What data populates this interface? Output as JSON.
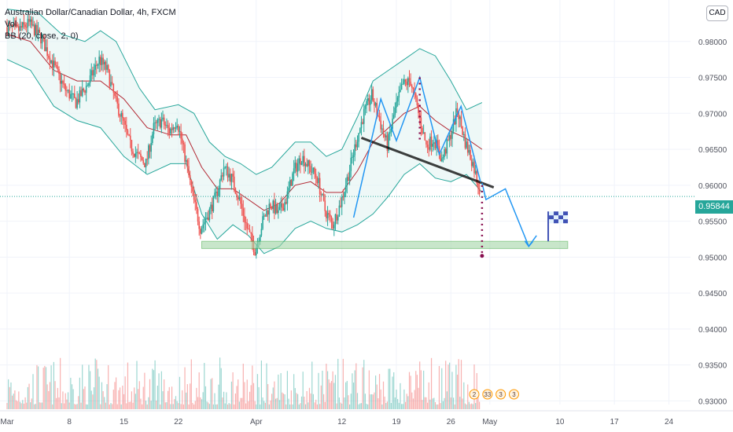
{
  "legend": {
    "symbol": "Australian Dollar/Canadian Dollar, 4h, FXCM",
    "vol": "Vol",
    "bb": "BB (20, close, 2, 0)"
  },
  "currency_badge": "CAD",
  "last_price_label": "0.95844",
  "colors": {
    "up": "#26a69a",
    "down": "#ef5350",
    "basis": "#b22833",
    "bands": "#26a69a",
    "band_fill": "#e0f2f1",
    "trend": "#000000",
    "projection": "#2196f3",
    "target_dots": "#880e4f",
    "support_zone": "#a5d6a7"
  },
  "chart_data": {
    "type": "candlestick",
    "title": "Australian Dollar/Canadian Dollar, 4h, FXCM",
    "y_ticks": [
      "0.98000",
      "0.97500",
      "0.97000",
      "0.96500",
      "0.96000",
      "0.95500",
      "0.95000",
      "0.94500",
      "0.94000",
      "0.93500",
      "0.93000"
    ],
    "ylim": [
      0.9295,
      0.9838
    ],
    "x_ticks": [
      {
        "label": "Mar",
        "day": 0
      },
      {
        "label": "8",
        "day": 8
      },
      {
        "label": "15",
        "day": 15
      },
      {
        "label": "22",
        "day": 22
      },
      {
        "label": "Apr",
        "day": 32
      },
      {
        "label": "12",
        "day": 43
      },
      {
        "label": "19",
        "day": 50
      },
      {
        "label": "26",
        "day": 57
      },
      {
        "label": "May",
        "day": 62
      },
      {
        "label": "10",
        "day": 71
      },
      {
        "label": "17",
        "day": 78
      },
      {
        "label": "24",
        "day": 85
      }
    ],
    "price_path": [
      {
        "day": 0.0,
        "price": 0.982
      },
      {
        "day": 1.5,
        "price": 0.9815
      },
      {
        "day": 3.0,
        "price": 0.9825
      },
      {
        "day": 4.5,
        "price": 0.9805
      },
      {
        "day": 6.0,
        "price": 0.977
      },
      {
        "day": 7.5,
        "price": 0.9735
      },
      {
        "day": 9.0,
        "price": 0.9715
      },
      {
        "day": 10.5,
        "price": 0.974
      },
      {
        "day": 12.0,
        "price": 0.9775
      },
      {
        "day": 13.0,
        "price": 0.976
      },
      {
        "day": 14.0,
        "price": 0.972
      },
      {
        "day": 15.0,
        "price": 0.969
      },
      {
        "day": 16.0,
        "price": 0.9655
      },
      {
        "day": 17.0,
        "price": 0.964
      },
      {
        "day": 18.0,
        "price": 0.963
      },
      {
        "day": 19.0,
        "price": 0.968
      },
      {
        "day": 20.0,
        "price": 0.969
      },
      {
        "day": 21.0,
        "price": 0.9675
      },
      {
        "day": 22.0,
        "price": 0.969
      },
      {
        "day": 23.0,
        "price": 0.964
      },
      {
        "day": 24.0,
        "price": 0.9585
      },
      {
        "day": 25.0,
        "price": 0.954
      },
      {
        "day": 26.0,
        "price": 0.956
      },
      {
        "day": 27.0,
        "price": 0.9585
      },
      {
        "day": 28.0,
        "price": 0.9625
      },
      {
        "day": 29.0,
        "price": 0.961
      },
      {
        "day": 30.0,
        "price": 0.958
      },
      {
        "day": 31.0,
        "price": 0.954
      },
      {
        "day": 32.0,
        "price": 0.951
      },
      {
        "day": 33.0,
        "price": 0.955
      },
      {
        "day": 34.0,
        "price": 0.9575
      },
      {
        "day": 35.0,
        "price": 0.956
      },
      {
        "day": 36.0,
        "price": 0.958
      },
      {
        "day": 37.0,
        "price": 0.962
      },
      {
        "day": 38.0,
        "price": 0.964
      },
      {
        "day": 39.0,
        "price": 0.9625
      },
      {
        "day": 40.0,
        "price": 0.961
      },
      {
        "day": 41.0,
        "price": 0.9565
      },
      {
        "day": 42.0,
        "price": 0.9545
      },
      {
        "day": 43.0,
        "price": 0.9575
      },
      {
        "day": 44.0,
        "price": 0.9615
      },
      {
        "day": 45.0,
        "price": 0.966
      },
      {
        "day": 46.0,
        "price": 0.97
      },
      {
        "day": 47.0,
        "price": 0.9725
      },
      {
        "day": 48.0,
        "price": 0.969
      },
      {
        "day": 49.0,
        "price": 0.9655
      },
      {
        "day": 50.0,
        "price": 0.9705
      },
      {
        "day": 51.0,
        "price": 0.974
      },
      {
        "day": 52.0,
        "price": 0.9745
      },
      {
        "day": 53.0,
        "price": 0.97
      },
      {
        "day": 54.0,
        "price": 0.9655
      },
      {
        "day": 55.0,
        "price": 0.9665
      },
      {
        "day": 56.0,
        "price": 0.9635
      },
      {
        "day": 57.0,
        "price": 0.9665
      },
      {
        "day": 58.0,
        "price": 0.9705
      },
      {
        "day": 59.0,
        "price": 0.966
      },
      {
        "day": 60.0,
        "price": 0.963
      },
      {
        "day": 60.8,
        "price": 0.9595
      }
    ],
    "bb_upper": [
      {
        "day": 0,
        "price": 0.9845
      },
      {
        "day": 4,
        "price": 0.984
      },
      {
        "day": 7,
        "price": 0.981
      },
      {
        "day": 10,
        "price": 0.98
      },
      {
        "day": 12,
        "price": 0.9815
      },
      {
        "day": 14,
        "price": 0.98
      },
      {
        "day": 17,
        "price": 0.9735
      },
      {
        "day": 19,
        "price": 0.9705
      },
      {
        "day": 22,
        "price": 0.9712
      },
      {
        "day": 24,
        "price": 0.97
      },
      {
        "day": 26,
        "price": 0.966
      },
      {
        "day": 28,
        "price": 0.964
      },
      {
        "day": 30,
        "price": 0.963
      },
      {
        "day": 32,
        "price": 0.9615
      },
      {
        "day": 34,
        "price": 0.9625
      },
      {
        "day": 37,
        "price": 0.966
      },
      {
        "day": 39,
        "price": 0.966
      },
      {
        "day": 41,
        "price": 0.964
      },
      {
        "day": 43,
        "price": 0.965
      },
      {
        "day": 45,
        "price": 0.9695
      },
      {
        "day": 47,
        "price": 0.9745
      },
      {
        "day": 49,
        "price": 0.976
      },
      {
        "day": 51,
        "price": 0.9775
      },
      {
        "day": 53,
        "price": 0.979
      },
      {
        "day": 55,
        "price": 0.978
      },
      {
        "day": 57,
        "price": 0.9745
      },
      {
        "day": 59,
        "price": 0.9705
      },
      {
        "day": 61,
        "price": 0.9715
      }
    ],
    "bb_basis": [
      {
        "day": 0,
        "price": 0.981
      },
      {
        "day": 3,
        "price": 0.98
      },
      {
        "day": 6,
        "price": 0.976
      },
      {
        "day": 9,
        "price": 0.9745
      },
      {
        "day": 12,
        "price": 0.9745
      },
      {
        "day": 15,
        "price": 0.972
      },
      {
        "day": 18,
        "price": 0.968
      },
      {
        "day": 21,
        "price": 0.967
      },
      {
        "day": 23,
        "price": 0.967
      },
      {
        "day": 25,
        "price": 0.9625
      },
      {
        "day": 27,
        "price": 0.9595
      },
      {
        "day": 29,
        "price": 0.9595
      },
      {
        "day": 31,
        "price": 0.958
      },
      {
        "day": 33,
        "price": 0.9565
      },
      {
        "day": 35,
        "price": 0.9575
      },
      {
        "day": 37,
        "price": 0.96
      },
      {
        "day": 39,
        "price": 0.9605
      },
      {
        "day": 41,
        "price": 0.959
      },
      {
        "day": 43,
        "price": 0.959
      },
      {
        "day": 45,
        "price": 0.962
      },
      {
        "day": 47,
        "price": 0.966
      },
      {
        "day": 49,
        "price": 0.968
      },
      {
        "day": 51,
        "price": 0.97
      },
      {
        "day": 53,
        "price": 0.971
      },
      {
        "day": 55,
        "price": 0.969
      },
      {
        "day": 57,
        "price": 0.9675
      },
      {
        "day": 59,
        "price": 0.9665
      },
      {
        "day": 61,
        "price": 0.965
      }
    ],
    "bb_lower": [
      {
        "day": 0,
        "price": 0.9775
      },
      {
        "day": 3,
        "price": 0.976
      },
      {
        "day": 6,
        "price": 0.971
      },
      {
        "day": 9,
        "price": 0.969
      },
      {
        "day": 12,
        "price": 0.968
      },
      {
        "day": 15,
        "price": 0.964
      },
      {
        "day": 18,
        "price": 0.9615
      },
      {
        "day": 21,
        "price": 0.963
      },
      {
        "day": 23,
        "price": 0.963
      },
      {
        "day": 25,
        "price": 0.956
      },
      {
        "day": 27,
        "price": 0.9525
      },
      {
        "day": 29,
        "price": 0.9545
      },
      {
        "day": 31,
        "price": 0.953
      },
      {
        "day": 33,
        "price": 0.9505
      },
      {
        "day": 35,
        "price": 0.9515
      },
      {
        "day": 37,
        "price": 0.954
      },
      {
        "day": 39,
        "price": 0.955
      },
      {
        "day": 41,
        "price": 0.954
      },
      {
        "day": 43,
        "price": 0.9535
      },
      {
        "day": 45,
        "price": 0.9545
      },
      {
        "day": 47,
        "price": 0.956
      },
      {
        "day": 49,
        "price": 0.9585
      },
      {
        "day": 51,
        "price": 0.9615
      },
      {
        "day": 53,
        "price": 0.963
      },
      {
        "day": 55,
        "price": 0.961
      },
      {
        "day": 57,
        "price": 0.9605
      },
      {
        "day": 59,
        "price": 0.9615
      },
      {
        "day": 61,
        "price": 0.959
      }
    ],
    "last_price": 0.95844,
    "drawings": {
      "neckline": {
        "from": {
          "day": 45.5,
          "price": 0.9666
        },
        "to": {
          "day": 62.5,
          "price": 0.9597
        }
      },
      "support_zone": {
        "from_day": 25,
        "to_day": 72,
        "low": 0.9512,
        "high": 0.9522
      },
      "pattern_path": [
        {
          "day": 44.5,
          "price": 0.9555
        },
        {
          "day": 48.0,
          "price": 0.972
        },
        {
          "day": 50.0,
          "price": 0.9662
        },
        {
          "day": 53.0,
          "price": 0.975
        },
        {
          "day": 55.5,
          "price": 0.9643
        },
        {
          "day": 58.3,
          "price": 0.971
        },
        {
          "day": 60.8,
          "price": 0.9605
        }
      ],
      "projection_path": [
        {
          "day": 61.0,
          "price": 0.9603
        },
        {
          "day": 61.5,
          "price": 0.958
        },
        {
          "day": 64.0,
          "price": 0.9595
        },
        {
          "day": 67.0,
          "price": 0.9515
        },
        {
          "day": 68.0,
          "price": 0.953
        }
      ],
      "target_dots": [
        {
          "day": 53.0,
          "price": 0.975
        },
        {
          "day": 53.0,
          "price": 0.9662
        },
        {
          "day": 61.0,
          "price": 0.96
        },
        {
          "day": 61.0,
          "price": 0.9505
        }
      ],
      "flag_day": 69.5
    },
    "volume_panel_labels": [
      "2",
      "33",
      "3",
      "3"
    ]
  }
}
